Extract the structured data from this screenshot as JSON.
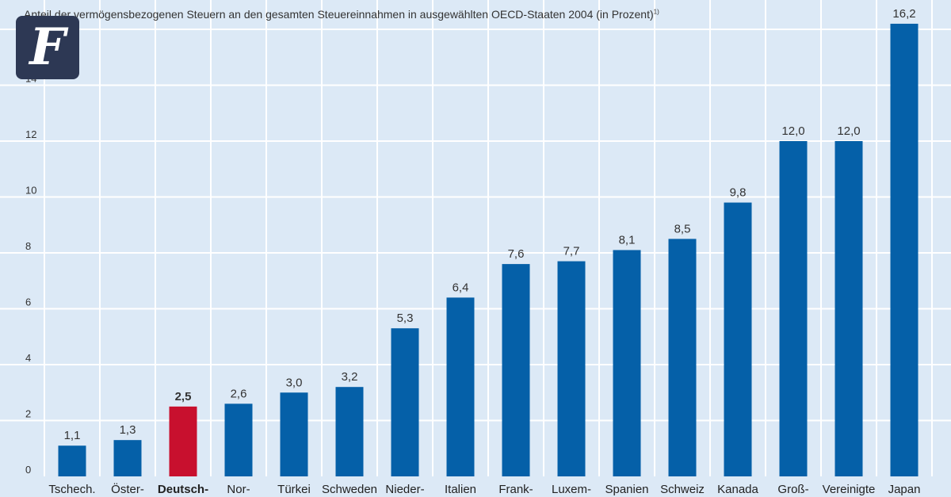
{
  "brand": {
    "logo_letter": "F",
    "logo_bg": "#2d3854"
  },
  "caption": {
    "text": "Anteil der vermögensbezogenen Steuern an den gesamten Steuereinnahmen in ausgewählten OECD-Staaten 2004 (in Prozent)",
    "footnote": "1)"
  },
  "chart_data": {
    "type": "bar",
    "title": "Anteil der vermögensbezogenen Steuern an den gesamten Steuereinnahmen in ausgewählten OECD-Staaten 2004 (in Prozent)",
    "categories": [
      "Tschech.",
      "Öster-",
      "Deutsch-",
      "Nor-",
      "Türkei",
      "Schweden",
      "Nieder-",
      "Italien",
      "Frank-",
      "Luxem-",
      "Spanien",
      "Schweiz",
      "Kanada",
      "Groß-",
      "Vereinigte",
      "Japan"
    ],
    "values": [
      1.1,
      1.3,
      2.5,
      2.6,
      3.0,
      3.2,
      5.3,
      6.4,
      7.6,
      7.7,
      8.1,
      8.5,
      9.8,
      12.0,
      12.0,
      16.2
    ],
    "value_labels": [
      "1,1",
      "1,3",
      "2,5",
      "2,6",
      "3,0",
      "3,2",
      "5,3",
      "6,4",
      "7,6",
      "7,7",
      "8,1",
      "8,5",
      "9,8",
      "12,0",
      "12,0",
      "16,2"
    ],
    "highlight_index": 2,
    "ylim": [
      0,
      16
    ],
    "yticks": [
      0,
      2,
      4,
      6,
      8,
      10,
      12,
      14
    ],
    "grid": true,
    "colors": {
      "bar": "#0560a8",
      "highlight": "#c8102e",
      "grid": "#ffffff",
      "background": "#dce9f6",
      "text": "#333333"
    }
  }
}
